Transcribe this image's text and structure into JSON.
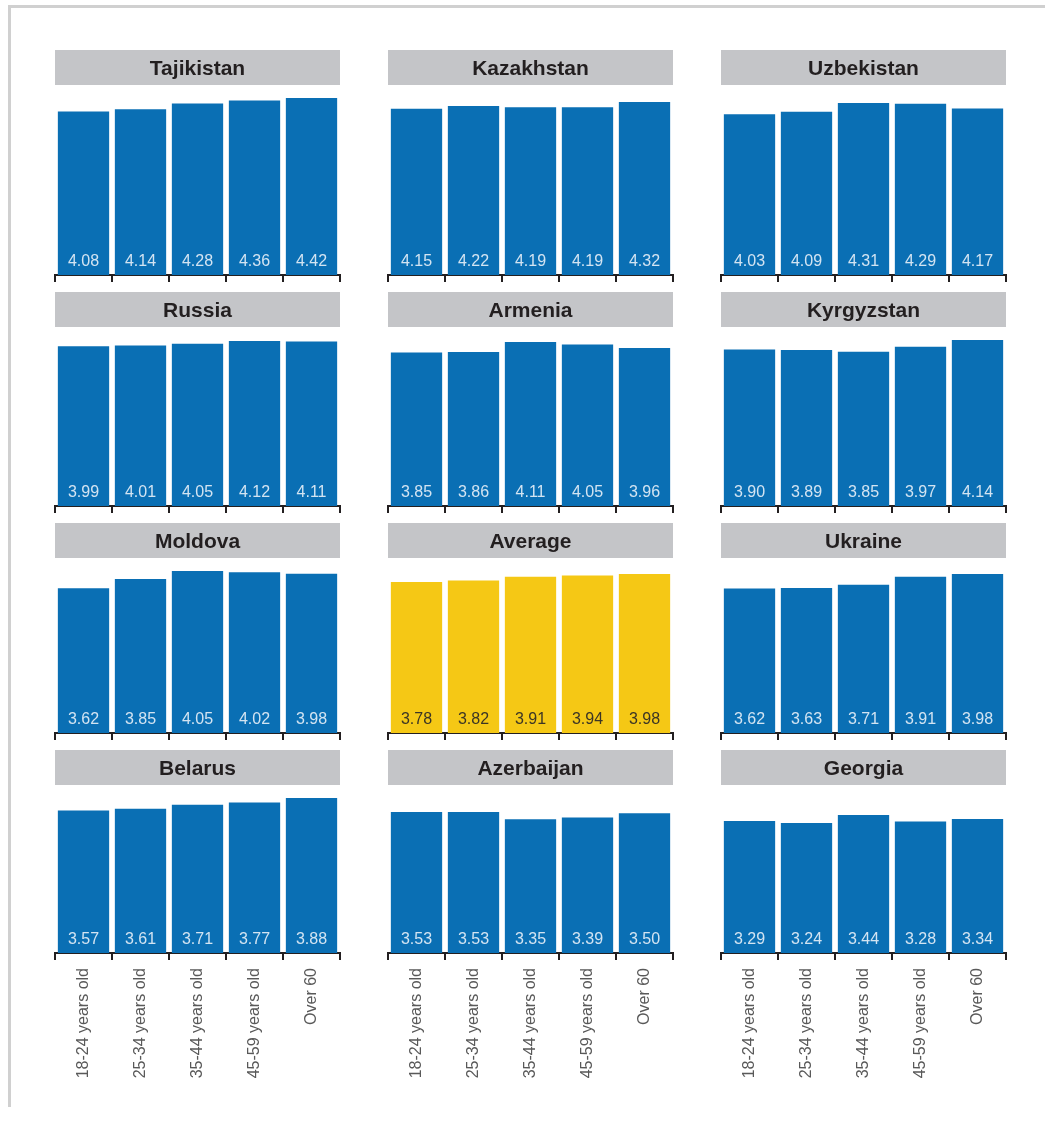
{
  "chart_data": [
    {
      "type": "bar",
      "title": "Tajikistan",
      "categories": [
        null,
        null,
        null,
        null,
        null
      ],
      "values": [
        4.08,
        4.14,
        4.28,
        4.36,
        4.42
      ],
      "color": "#0a6fb4",
      "data_labels": true,
      "tick_labels": false
    },
    {
      "type": "bar",
      "title": "Kazakhstan",
      "categories": [
        null,
        null,
        null,
        null,
        null
      ],
      "values": [
        4.15,
        4.22,
        4.19,
        4.19,
        4.32
      ],
      "color": "#0a6fb4",
      "data_labels": true,
      "tick_labels": false
    },
    {
      "type": "bar",
      "title": "Uzbekistan",
      "categories": [
        null,
        null,
        null,
        null,
        null
      ],
      "values": [
        4.03,
        4.09,
        4.31,
        4.29,
        4.17
      ],
      "color": "#0a6fb4",
      "data_labels": true,
      "tick_labels": false
    },
    {
      "type": "bar",
      "title": "Russia",
      "categories": [
        null,
        null,
        null,
        null,
        null
      ],
      "values": [
        3.99,
        4.01,
        4.05,
        4.12,
        4.11
      ],
      "color": "#0a6fb4",
      "data_labels": true,
      "tick_labels": false
    },
    {
      "type": "bar",
      "title": "Armenia",
      "categories": [
        null,
        null,
        null,
        null,
        null
      ],
      "values": [
        3.85,
        3.86,
        4.11,
        4.05,
        3.96
      ],
      "color": "#0a6fb4",
      "data_labels": true,
      "tick_labels": false
    },
    {
      "type": "bar",
      "title": "Kyrgyzstan",
      "categories": [
        null,
        null,
        null,
        null,
        null
      ],
      "values": [
        3.9,
        3.89,
        3.85,
        3.97,
        4.14
      ],
      "value_labels": [
        "3.90",
        "3.89",
        "3.85",
        "3.97",
        "4.14"
      ],
      "color": "#0a6fb4",
      "tick_labels": false
    },
    {
      "type": "bar",
      "title": "Moldova",
      "categories": [
        null,
        null,
        null,
        null,
        null
      ],
      "values": [
        3.62,
        3.85,
        4.05,
        4.02,
        3.98
      ],
      "color": "#0a6fb4",
      "data_labels": true,
      "tick_labels": false
    },
    {
      "type": "bar",
      "title": "Average",
      "categories": [
        null,
        null,
        null,
        null,
        null
      ],
      "values": [
        3.78,
        3.82,
        3.91,
        3.94,
        3.98
      ],
      "color": "#f5c815",
      "data_labels": true,
      "tick_labels": false
    },
    {
      "type": "bar",
      "title": "Ukraine",
      "categories": [
        null,
        null,
        null,
        null,
        null
      ],
      "values": [
        3.62,
        3.63,
        3.71,
        3.91,
        3.98
      ],
      "color": "#0a6fb4",
      "data_labels": true,
      "tick_labels": false
    },
    {
      "type": "bar",
      "title": "Belarus",
      "categories": [
        "18-24 years old",
        "25-34 years old",
        "35-44 years old",
        "45-59 years old",
        "Over 60"
      ],
      "values": [
        3.57,
        3.61,
        3.71,
        3.77,
        3.88
      ],
      "color": "#0a6fb4",
      "data_labels": true,
      "tick_labels": "x"
    },
    {
      "type": "bar",
      "title": "Azerbaijan",
      "categories": [
        "18-24 years old",
        "25-34 years old",
        "35-44 years old",
        "45-59 years old",
        "Over 60"
      ],
      "values": [
        3.53,
        3.53,
        3.35,
        3.39,
        3.5
      ],
      "value_labels": [
        "3.53",
        "3.53",
        "3.35",
        "3.39",
        "3.50"
      ],
      "color": "#0a6fb4",
      "tick_labels": "x"
    },
    {
      "type": "bar",
      "title": "Georgia",
      "categories": [
        "18-24 years old",
        "25-34 years old",
        "35-44 years old",
        "45-59 years old",
        "Over 60"
      ],
      "values": [
        3.29,
        3.24,
        3.44,
        3.28,
        3.34
      ],
      "color": "#0a6fb4",
      "data_labels": true,
      "tick_labels": "x"
    }
  ]
}
